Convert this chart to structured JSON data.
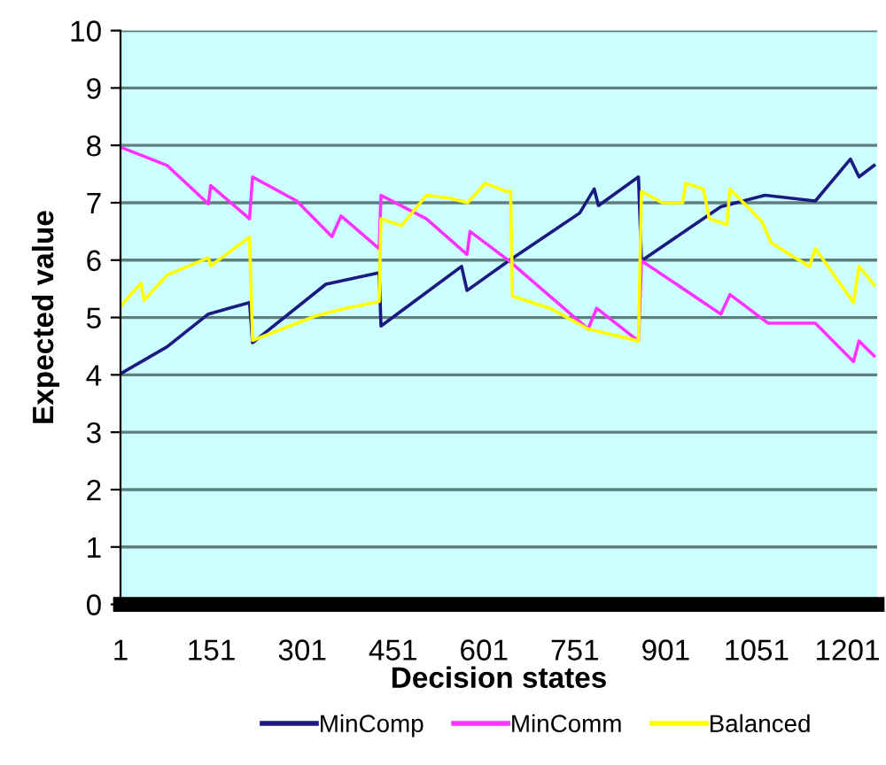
{
  "chart_data": {
    "type": "line",
    "xlabel": "Decision states",
    "ylabel": "Expected value",
    "xlim": [
      1,
      1250
    ],
    "xticks": [
      1,
      151,
      301,
      451,
      601,
      751,
      901,
      1051,
      1201
    ],
    "ylim": [
      0,
      10
    ],
    "yticks": [
      0,
      1,
      2,
      3,
      4,
      5,
      6,
      7,
      8,
      9,
      10
    ],
    "grid": "y",
    "legend": "bottom",
    "marker": "none",
    "line_style": "solid",
    "series": [
      {
        "name": "MinComp",
        "color": "#1a1a80",
        "x": [
          1,
          78,
          146,
          214,
          219,
          340,
          428,
          431,
          564,
          573,
          642,
          759,
          783,
          790,
          856,
          861,
          992,
          1065,
          1148,
          1206,
          1220,
          1245
        ],
        "values": [
          4.02,
          4.49,
          5.06,
          5.26,
          4.56,
          5.58,
          5.78,
          4.85,
          5.89,
          5.47,
          5.99,
          6.82,
          7.24,
          6.95,
          7.45,
          5.99,
          6.93,
          7.13,
          7.03,
          7.76,
          7.45,
          7.65
        ]
      },
      {
        "name": "MinComm",
        "color": "#ff33ff",
        "x": [
          1,
          78,
          146,
          150,
          214,
          219,
          292,
          350,
          365,
          428,
          431,
          506,
          573,
          578,
          642,
          710,
          773,
          787,
          856,
          861,
          992,
          1007,
          1070,
          1148,
          1211,
          1220,
          1245
        ],
        "values": [
          7.97,
          7.65,
          6.98,
          7.3,
          6.72,
          7.45,
          7.03,
          6.41,
          6.77,
          6.2,
          7.13,
          6.72,
          6.1,
          6.5,
          5.99,
          5.37,
          4.8,
          5.16,
          4.59,
          5.99,
          5.06,
          5.4,
          4.9,
          4.9,
          4.23,
          4.59,
          4.33
        ]
      },
      {
        "name": "Balanced",
        "color": "#ffff00",
        "x": [
          1,
          35,
          40,
          78,
          146,
          150,
          214,
          219,
          321,
          360,
          428,
          431,
          465,
          506,
          545,
          574,
          603,
          637,
          645,
          648,
          710,
          773,
          856,
          861,
          895,
          929,
          934,
          963,
          973,
          1002,
          1007,
          1060,
          1075,
          1138,
          1148,
          1211,
          1220,
          1245
        ],
        "values": [
          5.2,
          5.6,
          5.3,
          5.74,
          6.04,
          5.9,
          6.4,
          4.6,
          5.02,
          5.13,
          5.28,
          6.72,
          6.6,
          7.13,
          7.08,
          7.0,
          7.34,
          7.2,
          7.2,
          5.37,
          5.16,
          4.8,
          4.59,
          7.2,
          7.0,
          7.0,
          7.34,
          7.24,
          6.72,
          6.62,
          7.24,
          6.67,
          6.3,
          5.89,
          6.2,
          5.26,
          5.89,
          5.57
        ]
      }
    ]
  }
}
